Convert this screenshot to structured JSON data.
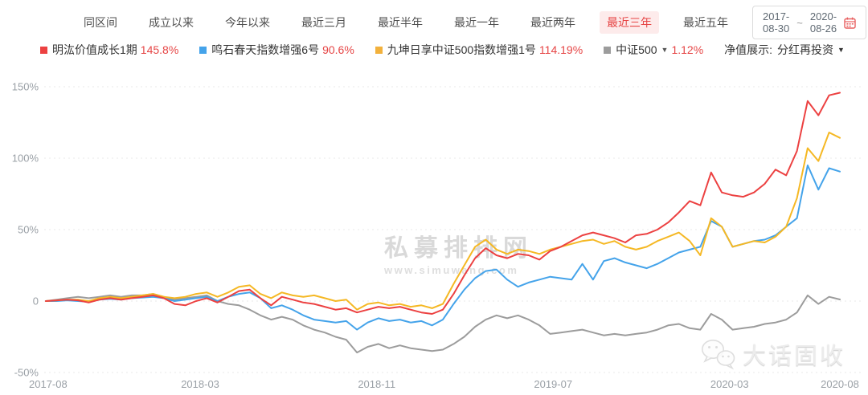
{
  "tabs": {
    "items": [
      {
        "label": "同区间",
        "active": false
      },
      {
        "label": "成立以来",
        "active": false
      },
      {
        "label": "今年以来",
        "active": false
      },
      {
        "label": "最近三月",
        "active": false
      },
      {
        "label": "最近半年",
        "active": false
      },
      {
        "label": "最近一年",
        "active": false
      },
      {
        "label": "最近两年",
        "active": false
      },
      {
        "label": "最近三年",
        "active": true
      },
      {
        "label": "最近五年",
        "active": false
      }
    ]
  },
  "date_range": {
    "start": "2017-08-30",
    "separator": "~",
    "end": "2020-08-26",
    "calendar_icon_color": "#e86161"
  },
  "legend": {
    "items": [
      {
        "name": "明汯价值成长1期",
        "value": "145.8%",
        "color": "#ec4141",
        "dropdown": false
      },
      {
        "name": "鸣石春天指数增强6号",
        "value": "90.6%",
        "color": "#44a3ea",
        "dropdown": false
      },
      {
        "name": "九坤日享中证500指数增强1号",
        "value": "114.19%",
        "color": "#f2b13c",
        "dropdown": false
      },
      {
        "name": "中证500",
        "value": "1.12%",
        "color": "#9c9c9c",
        "dropdown": true
      }
    ],
    "display_label": "净值展示:",
    "display_value": "分红再投资",
    "value_color": "#e64545"
  },
  "watermarks": {
    "center_title": "私募排排网",
    "center_subtitle": "www.simuwang.com",
    "corner_text": "大话固收",
    "corner_icon": "wechat-icon"
  },
  "chart_data": {
    "type": "line",
    "title": "",
    "xlabel": "",
    "ylabel": "",
    "grid": "dashed-horizontal",
    "legend_position": "top",
    "x_range": [
      "2017-08-30",
      "2020-08-26"
    ],
    "ylim": [
      -50,
      155
    ],
    "y_ticks": {
      "values": [
        150,
        100,
        50,
        0,
        -50
      ],
      "labels": [
        "150%",
        "100%",
        "50%",
        "0",
        "-50%"
      ]
    },
    "x_ticks": {
      "fractions": [
        0,
        0.1944,
        0.4167,
        0.6389,
        0.8611,
        1
      ],
      "labels": [
        "2017-08",
        "2018-03",
        "2018-11",
        "2019-07",
        "2020-03",
        "2020-08"
      ]
    },
    "series": [
      {
        "name": "中证500",
        "color": "#9c9c9c",
        "end_value": 1.12,
        "values": [
          0,
          1,
          2,
          3,
          2,
          3,
          4,
          3,
          4,
          4,
          5,
          3,
          1,
          2,
          3,
          4,
          0,
          -2,
          -3,
          -6,
          -10,
          -13,
          -11,
          -13,
          -17,
          -20,
          -22,
          -25,
          -27,
          -36,
          -32,
          -30,
          -33,
          -31,
          -33,
          -34,
          -35,
          -34,
          -30,
          -25,
          -18,
          -13,
          -10,
          -12,
          -10,
          -13,
          -17,
          -23,
          -22,
          -21,
          -20,
          -22,
          -24,
          -23,
          -24,
          -23,
          -22,
          -20,
          -17,
          -16,
          -19,
          -20,
          -9,
          -13,
          -20,
          -19,
          -18,
          -16,
          -15,
          -13,
          -8,
          4,
          -2,
          3,
          1.12
        ]
      },
      {
        "name": "鸣石春天指数增强6号",
        "color": "#44a3ea",
        "end_value": 90.6,
        "values": [
          0,
          0,
          0.5,
          0,
          -0.5,
          1,
          1.5,
          1,
          2,
          2.5,
          3,
          2,
          0,
          1,
          2,
          3,
          0,
          3,
          5,
          6,
          2,
          -5,
          -3,
          -6,
          -10,
          -13,
          -14,
          -15,
          -14,
          -20,
          -15,
          -12,
          -14,
          -13,
          -15,
          -14,
          -17,
          -13,
          -2,
          8,
          16,
          21,
          22,
          15,
          10,
          13,
          15,
          17,
          16,
          15,
          26,
          15,
          28,
          30,
          27,
          25,
          23,
          26,
          30,
          34,
          36,
          38,
          56,
          52,
          38,
          40,
          42,
          43,
          46,
          52,
          58,
          95,
          78,
          93,
          90.6
        ]
      },
      {
        "name": "九坤日享中证500指数增强1号",
        "color": "#f5b824",
        "end_value": 114.19,
        "values": [
          0,
          0.5,
          1,
          1,
          0,
          2,
          3,
          2,
          3,
          4,
          5,
          3,
          2,
          3,
          5,
          6,
          3,
          6,
          10,
          11,
          5,
          2,
          6,
          4,
          3,
          4,
          2,
          0,
          1,
          -6,
          -2,
          -1,
          -3,
          -2,
          -4,
          -3,
          -5,
          -2,
          12,
          25,
          38,
          43,
          36,
          33,
          36,
          35,
          33,
          36,
          38,
          40,
          42,
          43,
          40,
          42,
          38,
          36,
          38,
          42,
          45,
          48,
          42,
          32,
          58,
          52,
          38,
          40,
          42,
          41,
          45,
          52,
          72,
          107,
          98,
          118,
          114.19
        ]
      },
      {
        "name": "明汯价值成长1期",
        "color": "#ec4141",
        "end_value": 145.8,
        "values": [
          0,
          0.5,
          1,
          0.5,
          -1,
          1,
          2,
          1,
          2,
          3,
          4,
          2,
          -2,
          -3,
          0,
          2,
          -1,
          3,
          7,
          8,
          2,
          -3,
          3,
          1,
          -1,
          -2,
          -4,
          -6,
          -5,
          -8,
          -6,
          -4,
          -5,
          -4,
          -6,
          -8,
          -9,
          -6,
          5,
          18,
          30,
          37,
          32,
          30,
          33,
          32,
          29,
          35,
          38,
          42,
          46,
          48,
          46,
          44,
          41,
          46,
          47,
          50,
          55,
          62,
          70,
          67,
          90,
          76,
          74,
          73,
          76,
          82,
          92,
          88,
          105,
          140,
          130,
          144,
          145.8
        ]
      }
    ]
  }
}
